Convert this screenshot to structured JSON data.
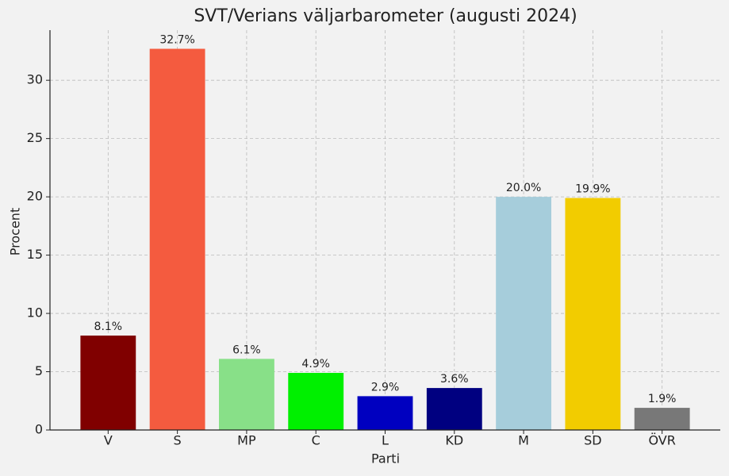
{
  "chart_data": {
    "type": "bar",
    "title": "SVT/Verians väljarbarometer (augusti 2024)",
    "x_label": "Parti",
    "y_label": "Procent",
    "categories": [
      "V",
      "S",
      "MP",
      "C",
      "L",
      "KD",
      "M",
      "SD",
      "ÖVR"
    ],
    "values": [
      8.1,
      32.7,
      6.1,
      4.9,
      2.9,
      3.6,
      20.0,
      19.9,
      1.9
    ],
    "value_labels": [
      "8.1%",
      "32.7%",
      "6.1%",
      "4.9%",
      "2.9%",
      "3.6%",
      "20.0%",
      "19.9%",
      "1.9%"
    ],
    "colors": [
      "#800000",
      "#f45b3f",
      "#88e088",
      "#00f000",
      "#0000c0",
      "#000080",
      "#a6cddb",
      "#f2cc00",
      "#787878"
    ],
    "ylim": [
      0,
      34.3
    ],
    "yticks": [
      0,
      5,
      10,
      15,
      20,
      25,
      30
    ],
    "grid": true
  }
}
